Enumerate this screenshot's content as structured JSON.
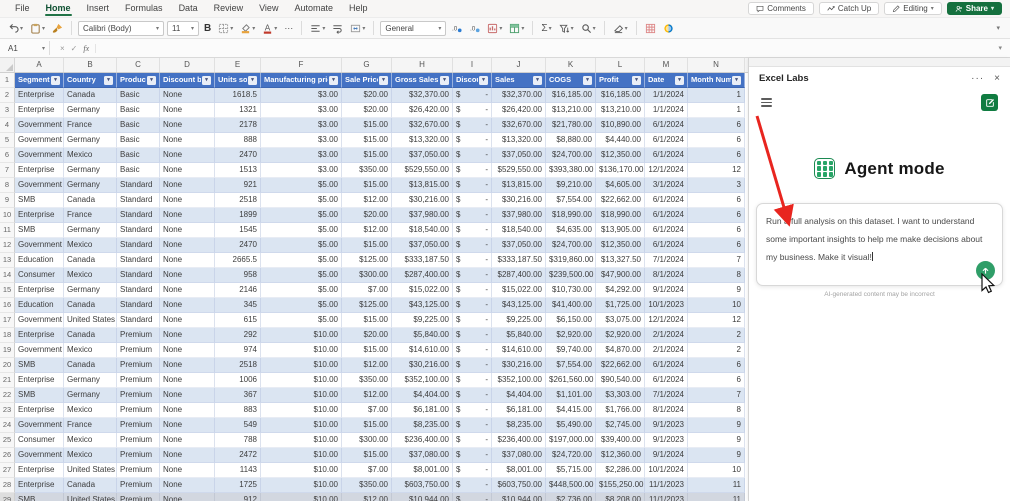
{
  "app": {
    "menu_tabs": [
      "File",
      "Home",
      "Insert",
      "Formulas",
      "Data",
      "Review",
      "View",
      "Automate",
      "Help"
    ],
    "active_tab": "Home",
    "top_right": {
      "comments": "Comments",
      "catch_up": "Catch Up",
      "editing": "Editing",
      "share": "Share"
    },
    "ribbon": {
      "font_name": "Calibri (Body)",
      "font_size": "11",
      "bold_label": "B",
      "number_format": "General",
      "more_label": "···",
      "autosum_label": "Σ"
    },
    "formula_bar": {
      "name_box": "A1",
      "cancel": "×",
      "enter": "✓",
      "fx": "fx",
      "formula": ""
    }
  },
  "grid": {
    "column_letters": [
      "A",
      "B",
      "C",
      "D",
      "E",
      "F",
      "G",
      "H",
      "I",
      "J",
      "K",
      "L",
      "M",
      "N"
    ],
    "header_row_number": "1",
    "headers": [
      "Segment",
      "Country",
      "Product",
      "Discount band",
      "Units sold",
      "Manufacturing price",
      "Sale Price",
      "Gross Sales",
      "Discounts",
      "Sales",
      "COGS",
      "Profit",
      "Date",
      "Month Number"
    ],
    "rows": [
      [
        "Enterprise",
        "Canada",
        "Basic",
        "None",
        "1618.5",
        "$3.00",
        "$20.00",
        "$32,370.00",
        "$ -",
        "$32,370.00",
        "$16,185.00",
        "$16,185.00",
        "1/1/2024",
        "1"
      ],
      [
        "Enterprise",
        "Germany",
        "Basic",
        "None",
        "1321",
        "$3.00",
        "$20.00",
        "$26,420.00",
        "$ -",
        "$26,420.00",
        "$13,210.00",
        "$13,210.00",
        "1/1/2024",
        "1"
      ],
      [
        "Government",
        "France",
        "Basic",
        "None",
        "2178",
        "$3.00",
        "$15.00",
        "$32,670.00",
        "$ -",
        "$32,670.00",
        "$21,780.00",
        "$10,890.00",
        "6/1/2024",
        "6"
      ],
      [
        "Government",
        "Germany",
        "Basic",
        "None",
        "888",
        "$3.00",
        "$15.00",
        "$13,320.00",
        "$ -",
        "$13,320.00",
        "$8,880.00",
        "$4,440.00",
        "6/1/2024",
        "6"
      ],
      [
        "Government",
        "Mexico",
        "Basic",
        "None",
        "2470",
        "$3.00",
        "$15.00",
        "$37,050.00",
        "$ -",
        "$37,050.00",
        "$24,700.00",
        "$12,350.00",
        "6/1/2024",
        "6"
      ],
      [
        "Enterprise",
        "Germany",
        "Basic",
        "None",
        "1513",
        "$3.00",
        "$350.00",
        "$529,550.00",
        "$ -",
        "$529,550.00",
        "$393,380.00",
        "$136,170.00",
        "12/1/2024",
        "12"
      ],
      [
        "Government",
        "Germany",
        "Standard",
        "None",
        "921",
        "$5.00",
        "$15.00",
        "$13,815.00",
        "$ -",
        "$13,815.00",
        "$9,210.00",
        "$4,605.00",
        "3/1/2024",
        "3"
      ],
      [
        "SMB",
        "Canada",
        "Standard",
        "None",
        "2518",
        "$5.00",
        "$12.00",
        "$30,216.00",
        "$ -",
        "$30,216.00",
        "$7,554.00",
        "$22,662.00",
        "6/1/2024",
        "6"
      ],
      [
        "Enterprise",
        "France",
        "Standard",
        "None",
        "1899",
        "$5.00",
        "$20.00",
        "$37,980.00",
        "$ -",
        "$37,980.00",
        "$18,990.00",
        "$18,990.00",
        "6/1/2024",
        "6"
      ],
      [
        "SMB",
        "Germany",
        "Standard",
        "None",
        "1545",
        "$5.00",
        "$12.00",
        "$18,540.00",
        "$ -",
        "$18,540.00",
        "$4,635.00",
        "$13,905.00",
        "6/1/2024",
        "6"
      ],
      [
        "Government",
        "Mexico",
        "Standard",
        "None",
        "2470",
        "$5.00",
        "$15.00",
        "$37,050.00",
        "$ -",
        "$37,050.00",
        "$24,700.00",
        "$12,350.00",
        "6/1/2024",
        "6"
      ],
      [
        "Education",
        "Canada",
        "Standard",
        "None",
        "2665.5",
        "$5.00",
        "$125.00",
        "$333,187.50",
        "$ -",
        "$333,187.50",
        "$319,860.00",
        "$13,327.50",
        "7/1/2024",
        "7"
      ],
      [
        "Consumer",
        "Mexico",
        "Standard",
        "None",
        "958",
        "$5.00",
        "$300.00",
        "$287,400.00",
        "$ -",
        "$287,400.00",
        "$239,500.00",
        "$47,900.00",
        "8/1/2024",
        "8"
      ],
      [
        "Enterprise",
        "Germany",
        "Standard",
        "None",
        "2146",
        "$5.00",
        "$7.00",
        "$15,022.00",
        "$ -",
        "$15,022.00",
        "$10,730.00",
        "$4,292.00",
        "9/1/2024",
        "9"
      ],
      [
        "Education",
        "Canada",
        "Standard",
        "None",
        "345",
        "$5.00",
        "$125.00",
        "$43,125.00",
        "$ -",
        "$43,125.00",
        "$41,400.00",
        "$1,725.00",
        "10/1/2023",
        "10"
      ],
      [
        "Government",
        "United States",
        "Standard",
        "None",
        "615",
        "$5.00",
        "$15.00",
        "$9,225.00",
        "$ -",
        "$9,225.00",
        "$6,150.00",
        "$3,075.00",
        "12/1/2024",
        "12"
      ],
      [
        "Enterprise",
        "Canada",
        "Premium",
        "None",
        "292",
        "$10.00",
        "$20.00",
        "$5,840.00",
        "$ -",
        "$5,840.00",
        "$2,920.00",
        "$2,920.00",
        "2/1/2024",
        "2"
      ],
      [
        "Government",
        "Mexico",
        "Premium",
        "None",
        "974",
        "$10.00",
        "$15.00",
        "$14,610.00",
        "$ -",
        "$14,610.00",
        "$9,740.00",
        "$4,870.00",
        "2/1/2024",
        "2"
      ],
      [
        "SMB",
        "Canada",
        "Premium",
        "None",
        "2518",
        "$10.00",
        "$12.00",
        "$30,216.00",
        "$ -",
        "$30,216.00",
        "$7,554.00",
        "$22,662.00",
        "6/1/2024",
        "6"
      ],
      [
        "Enterprise",
        "Germany",
        "Premium",
        "None",
        "1006",
        "$10.00",
        "$350.00",
        "$352,100.00",
        "$ -",
        "$352,100.00",
        "$261,560.00",
        "$90,540.00",
        "6/1/2024",
        "6"
      ],
      [
        "SMB",
        "Germany",
        "Premium",
        "None",
        "367",
        "$10.00",
        "$12.00",
        "$4,404.00",
        "$ -",
        "$4,404.00",
        "$1,101.00",
        "$3,303.00",
        "7/1/2024",
        "7"
      ],
      [
        "Enterprise",
        "Mexico",
        "Premium",
        "None",
        "883",
        "$10.00",
        "$7.00",
        "$6,181.00",
        "$ -",
        "$6,181.00",
        "$4,415.00",
        "$1,766.00",
        "8/1/2024",
        "8"
      ],
      [
        "Government",
        "France",
        "Premium",
        "None",
        "549",
        "$10.00",
        "$15.00",
        "$8,235.00",
        "$ -",
        "$8,235.00",
        "$5,490.00",
        "$2,745.00",
        "9/1/2023",
        "9"
      ],
      [
        "Consumer",
        "Mexico",
        "Premium",
        "None",
        "788",
        "$10.00",
        "$300.00",
        "$236,400.00",
        "$ -",
        "$236,400.00",
        "$197,000.00",
        "$39,400.00",
        "9/1/2023",
        "9"
      ],
      [
        "Government",
        "Mexico",
        "Premium",
        "None",
        "2472",
        "$10.00",
        "$15.00",
        "$37,080.00",
        "$ -",
        "$37,080.00",
        "$24,720.00",
        "$12,360.00",
        "9/1/2024",
        "9"
      ],
      [
        "Enterprise",
        "United States",
        "Premium",
        "None",
        "1143",
        "$10.00",
        "$7.00",
        "$8,001.00",
        "$ -",
        "$8,001.00",
        "$5,715.00",
        "$2,286.00",
        "10/1/2024",
        "10"
      ],
      [
        "Enterprise",
        "Canada",
        "Premium",
        "None",
        "1725",
        "$10.00",
        "$350.00",
        "$603,750.00",
        "$ -",
        "$603,750.00",
        "$448,500.00",
        "$155,250.00",
        "11/1/2023",
        "11"
      ],
      [
        "SMB",
        "United States",
        "Premium",
        "None",
        "912",
        "$10.00",
        "$12.00",
        "$10,944.00",
        "$ -",
        "$10,944.00",
        "$2,736.00",
        "$8,208.00",
        "11/1/2023",
        "11"
      ]
    ],
    "header_fill": "#4472C4",
    "band_fill": "#D9E1F2"
  },
  "panel": {
    "title": "Excel Labs",
    "menu": "···",
    "close": "×",
    "heading": "Agent mode",
    "prompt": "Run a full analysis on this dataset. I want to understand some important insights to help me make decisions about my business. Make it visual!",
    "disclaimer": "AI-generated content may be incorrect",
    "accent_green": "#107c41"
  }
}
